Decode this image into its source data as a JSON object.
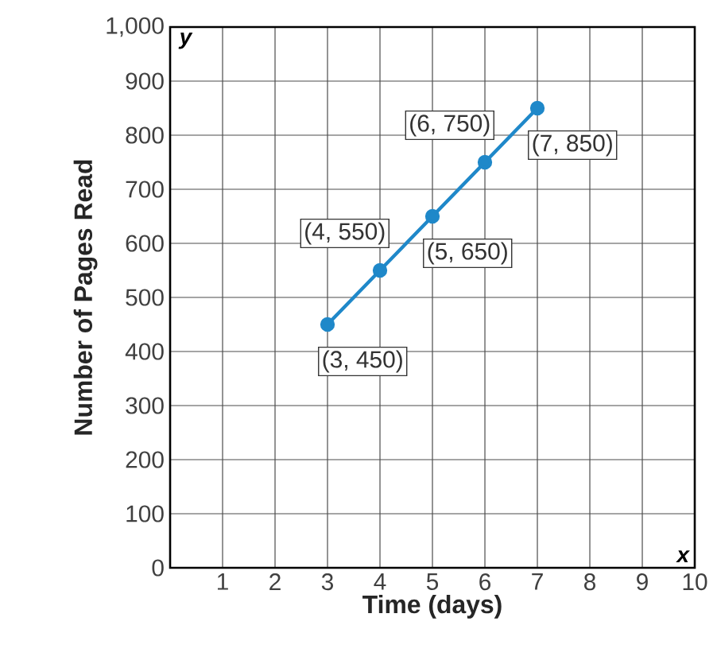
{
  "chart_data": {
    "type": "line",
    "xlabel": "Time (days)",
    "ylabel": "Number of Pages Read",
    "x": [
      3,
      4,
      5,
      6,
      7
    ],
    "series": [
      {
        "color": "#1f88c9",
        "values": [
          450,
          550,
          650,
          750,
          850
        ],
        "value_labels": [
          "(3, 450)",
          "(4, 550)",
          "(5, 650)",
          "(6, 750)",
          "(7, 850)"
        ]
      }
    ],
    "xlim": [
      0,
      10
    ],
    "ylim": [
      0,
      1000
    ],
    "xticks": [
      1,
      2,
      3,
      4,
      5,
      6,
      7,
      8,
      9,
      10
    ],
    "yticks": [
      0,
      100,
      200,
      300,
      400,
      500,
      600,
      700,
      800,
      900,
      {
        "value": 1000,
        "label": "1,000"
      }
    ],
    "annotations": [
      "x",
      "y"
    ],
    "grid": true,
    "marker": "circle",
    "line_style": "solid"
  }
}
